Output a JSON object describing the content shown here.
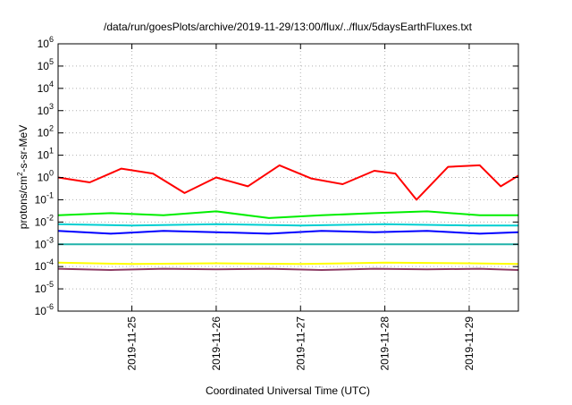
{
  "chart_data": {
    "type": "line",
    "title": "/data/run/goesPlots/archive/2019-11-29/13:00/flux/../flux/5daysEarthFluxes.txt",
    "xlabel": "Coordinated Universal Time (UTC)",
    "ylabel": {
      "base": "protons/cm",
      "sup": "2",
      "rest": "-s-sr-MeV"
    },
    "yscale": "log",
    "ylim_exponent": [
      -6,
      6
    ],
    "y_ticks": [
      {
        "base": "10",
        "exp": "-6"
      },
      {
        "base": "10",
        "exp": "-5"
      },
      {
        "base": "10",
        "exp": "-4"
      },
      {
        "base": "10",
        "exp": "-3"
      },
      {
        "base": "10",
        "exp": "-2"
      },
      {
        "base": "10",
        "exp": "-1"
      },
      {
        "base": "10",
        "exp": "0"
      },
      {
        "base": "10",
        "exp": "1"
      },
      {
        "base": "10",
        "exp": "2"
      },
      {
        "base": "10",
        "exp": "3"
      },
      {
        "base": "10",
        "exp": "4"
      },
      {
        "base": "10",
        "exp": "5"
      },
      {
        "base": "10",
        "exp": "6"
      }
    ],
    "x_range": [
      "2019-11-24 03:00",
      "2019-11-29 14:00"
    ],
    "x_ticks": [
      "2019-11-25",
      "2019-11-26",
      "2019-11-27",
      "2019-11-28",
      "2019-11-29"
    ],
    "grid": true,
    "series": [
      {
        "color": "#ff0000",
        "x": [
          "2019-11-24 03:00",
          "2019-11-24 12:00",
          "2019-11-24 21:00",
          "2019-11-25 06:00",
          "2019-11-25 15:00",
          "2019-11-26 00:00",
          "2019-11-26 09:00",
          "2019-11-26 18:00",
          "2019-11-27 03:00",
          "2019-11-27 12:00",
          "2019-11-27 21:00",
          "2019-11-28 03:00",
          "2019-11-28 09:00",
          "2019-11-28 18:00",
          "2019-11-29 03:00",
          "2019-11-29 09:00",
          "2019-11-29 14:00"
        ],
        "y": [
          1.0,
          0.6,
          2.5,
          1.5,
          0.2,
          1.0,
          0.4,
          3.5,
          0.9,
          0.5,
          2.0,
          1.5,
          0.1,
          3.0,
          3.5,
          0.4,
          1.2
        ]
      },
      {
        "color": "#00ee00",
        "x": [
          "2019-11-24 03:00",
          "2019-11-24 18:00",
          "2019-11-25 09:00",
          "2019-11-26 00:00",
          "2019-11-26 15:00",
          "2019-11-27 06:00",
          "2019-11-27 21:00",
          "2019-11-28 12:00",
          "2019-11-29 03:00",
          "2019-11-29 14:00"
        ],
        "y": [
          0.02,
          0.025,
          0.02,
          0.03,
          0.015,
          0.02,
          0.025,
          0.03,
          0.02,
          0.02
        ]
      },
      {
        "color": "#00ced1",
        "x": [
          "2019-11-24 03:00",
          "2019-11-25 00:00",
          "2019-11-26 00:00",
          "2019-11-27 00:00",
          "2019-11-28 00:00",
          "2019-11-29 00:00",
          "2019-11-29 14:00"
        ],
        "y": [
          0.008,
          0.007,
          0.008,
          0.007,
          0.008,
          0.007,
          0.007
        ]
      },
      {
        "color": "#0000ff",
        "x": [
          "2019-11-24 03:00",
          "2019-11-24 18:00",
          "2019-11-25 09:00",
          "2019-11-26 00:00",
          "2019-11-26 15:00",
          "2019-11-27 06:00",
          "2019-11-27 21:00",
          "2019-11-28 12:00",
          "2019-11-29 03:00",
          "2019-11-29 14:00"
        ],
        "y": [
          0.004,
          0.003,
          0.004,
          0.0035,
          0.003,
          0.004,
          0.0035,
          0.004,
          0.003,
          0.0035
        ]
      },
      {
        "color": "#20b2aa",
        "x": [
          "2019-11-24 03:00",
          "2019-11-25 00:00",
          "2019-11-26 00:00",
          "2019-11-27 00:00",
          "2019-11-28 00:00",
          "2019-11-29 00:00",
          "2019-11-29 14:00"
        ],
        "y": [
          0.001,
          0.001,
          0.001,
          0.001,
          0.001,
          0.001,
          0.001
        ]
      },
      {
        "color": "#ffff00",
        "x": [
          "2019-11-24 03:00",
          "2019-11-25 00:00",
          "2019-11-26 00:00",
          "2019-11-27 00:00",
          "2019-11-28 00:00",
          "2019-11-29 00:00",
          "2019-11-29 14:00"
        ],
        "y": [
          0.00015,
          0.00013,
          0.00014,
          0.00013,
          0.00015,
          0.00014,
          0.00013
        ]
      },
      {
        "color": "#8b3a62",
        "x": [
          "2019-11-24 03:00",
          "2019-11-24 18:00",
          "2019-11-25 09:00",
          "2019-11-26 00:00",
          "2019-11-26 15:00",
          "2019-11-27 06:00",
          "2019-11-27 21:00",
          "2019-11-28 12:00",
          "2019-11-29 03:00",
          "2019-11-29 14:00"
        ],
        "y": [
          8e-05,
          7e-05,
          8e-05,
          7.5e-05,
          8e-05,
          7e-05,
          8e-05,
          7.5e-05,
          8e-05,
          7e-05
        ]
      }
    ]
  }
}
